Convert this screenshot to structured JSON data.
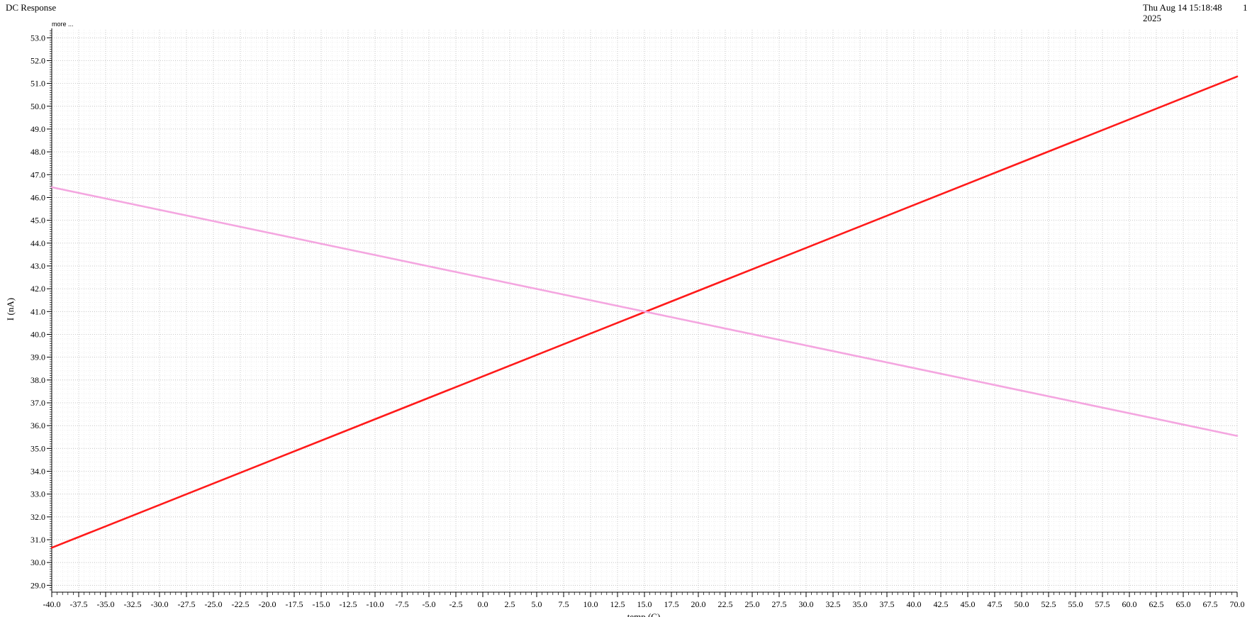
{
  "header": {
    "title": "DC Response",
    "date": "Thu Aug 14 15:18:48 2025",
    "page_number": "1",
    "more_link": "more ..."
  },
  "chart_data": {
    "type": "line",
    "xlabel": "temp (C)",
    "ylabel": "I (nA)",
    "xlim": [
      -40.0,
      70.0
    ],
    "ylim": [
      28.7,
      53.35
    ],
    "grid": true,
    "xticks": [
      -40.0,
      -37.5,
      -35.0,
      -32.5,
      -30.0,
      -27.5,
      -25.0,
      -22.5,
      -20.0,
      -17.5,
      -15.0,
      -12.5,
      -10.0,
      -7.5,
      -5.0,
      -2.5,
      0.0,
      2.5,
      5.0,
      7.5,
      10.0,
      12.5,
      15.0,
      17.5,
      20.0,
      22.5,
      25.0,
      27.5,
      30.0,
      32.5,
      35.0,
      37.5,
      40.0,
      42.5,
      45.0,
      47.5,
      50.0,
      52.5,
      55.0,
      57.5,
      60.0,
      62.5,
      65.0,
      67.5,
      70.0
    ],
    "yticks": [
      29.0,
      30.0,
      31.0,
      32.0,
      33.0,
      34.0,
      35.0,
      36.0,
      37.0,
      38.0,
      39.0,
      40.0,
      41.0,
      42.0,
      43.0,
      44.0,
      45.0,
      46.0,
      47.0,
      48.0,
      49.0,
      50.0,
      51.0,
      52.0,
      53.0
    ],
    "series": [
      {
        "color": "#ff1a1a",
        "x": [
          -40.0,
          70.0
        ],
        "y": [
          30.65,
          51.3
        ]
      },
      {
        "color": "#f4a6e0",
        "x": [
          -40.0,
          70.0
        ],
        "y": [
          46.45,
          35.55
        ]
      }
    ]
  }
}
